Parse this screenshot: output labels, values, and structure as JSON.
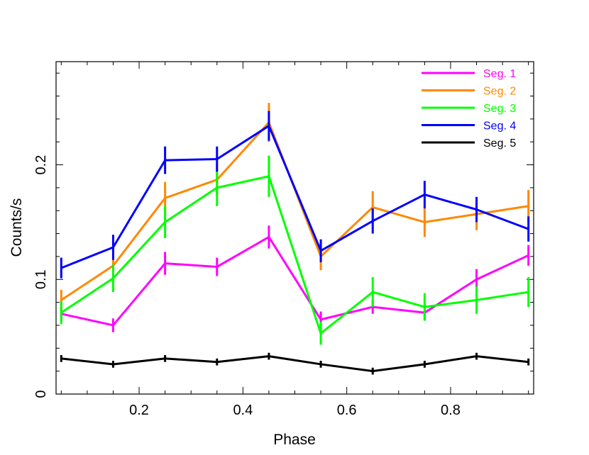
{
  "chart_data": {
    "type": "line",
    "xlabel": "Phase",
    "ylabel": "Counts/s",
    "xlim": [
      0.04,
      0.96
    ],
    "ylim": [
      0,
      0.29
    ],
    "x_ticks": [
      0.2,
      0.4,
      0.6,
      0.8
    ],
    "x_tick_labels": [
      "0.2",
      "0.4",
      "0.6",
      "0.8"
    ],
    "y_ticks": [
      0,
      0.1,
      0.2
    ],
    "y_tick_labels": [
      "0",
      "0.1",
      "0.2"
    ],
    "legend_position": "top-right",
    "x": [
      0.05,
      0.15,
      0.25,
      0.35,
      0.45,
      0.55,
      0.65,
      0.75,
      0.85,
      0.95
    ],
    "series": [
      {
        "name": "Seg. 1",
        "color": "#ff00ff",
        "values": [
          0.07,
          0.06,
          0.114,
          0.111,
          0.137,
          0.065,
          0.076,
          0.071,
          0.1,
          0.121
        ],
        "errors": [
          0.006,
          0.006,
          0.01,
          0.008,
          0.01,
          0.007,
          0.006,
          0.007,
          0.009,
          0.009
        ]
      },
      {
        "name": "Seg. 2",
        "color": "#ff8800",
        "values": [
          0.082,
          0.112,
          0.171,
          0.187,
          0.237,
          0.12,
          0.163,
          0.15,
          0.157,
          0.164
        ],
        "errors": [
          0.009,
          0.011,
          0.014,
          0.013,
          0.017,
          0.012,
          0.014,
          0.013,
          0.014,
          0.014
        ]
      },
      {
        "name": "Seg. 3",
        "color": "#00ff00",
        "values": [
          0.071,
          0.101,
          0.15,
          0.18,
          0.19,
          0.053,
          0.089,
          0.076,
          0.082,
          0.089
        ],
        "errors": [
          0.01,
          0.012,
          0.014,
          0.016,
          0.018,
          0.01,
          0.013,
          0.012,
          0.012,
          0.013
        ]
      },
      {
        "name": "Seg. 4",
        "color": "#0000ff",
        "values": [
          0.11,
          0.128,
          0.204,
          0.205,
          0.234,
          0.125,
          0.151,
          0.174,
          0.161,
          0.144
        ],
        "errors": [
          0.009,
          0.011,
          0.012,
          0.011,
          0.013,
          0.01,
          0.011,
          0.012,
          0.011,
          0.011
        ]
      },
      {
        "name": "Seg. 5",
        "color": "#000000",
        "values": [
          0.031,
          0.026,
          0.031,
          0.028,
          0.033,
          0.026,
          0.02,
          0.026,
          0.033,
          0.028
        ],
        "errors": [
          0.003,
          0.003,
          0.003,
          0.003,
          0.003,
          0.003,
          0.003,
          0.003,
          0.003,
          0.003
        ]
      }
    ]
  }
}
